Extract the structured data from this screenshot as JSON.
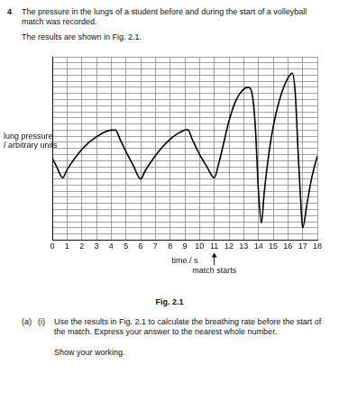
{
  "document": {
    "question_number": "4",
    "intro": "The pressure in the lungs of a student before and during the start of a volleyball match was recorded.",
    "intro2": "The results are shown in Fig. 2.1.",
    "figure_caption": "Fig. 2.1",
    "part": "(a)",
    "subpart": "(i)",
    "question": "Use the results in Fig. 2.1 to calculate the breathing rate before the start of the match. Express your answer to the nearest whole number.",
    "instruction": "Show your working."
  },
  "chart_data": {
    "type": "line",
    "x_label": "time / s",
    "y_label": [
      "lung pressure",
      "/ arbitrary units"
    ],
    "x": [
      0,
      0.3,
      0.7,
      1,
      1.5,
      2,
      2.5,
      3,
      3.5,
      4,
      4.3,
      4.6,
      5,
      5.5,
      6,
      6.3,
      7,
      7.5,
      8,
      8.5,
      9,
      9.2,
      9.5,
      10,
      10.5,
      11,
      11.3,
      11.7,
      12,
      12.5,
      13,
      13.3,
      13.6,
      13.8,
      14,
      14.2,
      14.4,
      14.7,
      15,
      15.5,
      16,
      16.3,
      16.5,
      16.7,
      16.9,
      17,
      17.3,
      17.6,
      18
    ],
    "values": [
      13.4,
      12,
      10.2,
      11.5,
      13.3,
      14.8,
      16,
      16.9,
      17.6,
      18,
      18,
      16.5,
      14.5,
      12.2,
      10,
      11.3,
      13.8,
      15.3,
      16.5,
      17.4,
      18,
      18.1,
      16.5,
      14,
      12,
      10.2,
      12.5,
      16.5,
      19.5,
      23,
      24.7,
      25,
      23.5,
      18,
      8,
      2.8,
      8,
      14,
      18.5,
      23.5,
      26.5,
      27.3,
      24,
      14,
      5,
      2,
      6,
      10,
      13.8
    ],
    "color": "#000000",
    "xlim": [
      0,
      18
    ],
    "xticks": [
      0,
      1,
      2,
      3,
      4,
      5,
      6,
      7,
      8,
      9,
      10,
      11,
      12,
      13,
      14,
      15,
      16,
      17,
      18
    ],
    "ylim": [
      0,
      30
    ],
    "yticks": [
      0,
      1,
      2,
      3,
      4,
      5,
      6,
      7,
      8,
      9,
      10,
      11,
      12,
      13,
      14,
      15,
      16,
      17,
      18,
      19,
      20,
      21,
      22,
      23,
      24,
      25,
      26,
      27,
      28,
      29,
      30
    ],
    "grid": true,
    "tick_labels": "x",
    "annotations": [
      {
        "x": 11,
        "text": "match starts"
      }
    ]
  }
}
